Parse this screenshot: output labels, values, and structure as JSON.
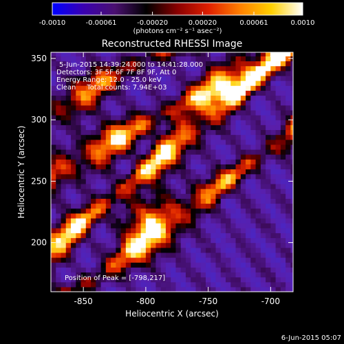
{
  "colorbar": {
    "tick_labels": [
      "-0.0010",
      "-0.00061",
      "-0.00020",
      "0.00020",
      "0.00061",
      "0.0010"
    ],
    "tick_values": [
      -0.001,
      -0.00061,
      -0.0002,
      0.0002,
      0.00061,
      0.001
    ],
    "range": [
      -0.001,
      0.001
    ],
    "unit_label": "(photons cm⁻² s⁻¹ asec⁻²)",
    "colors": [
      "#0000ff",
      "#3a00b0",
      "#4a1070",
      "#000000",
      "#8a0000",
      "#e02000",
      "#ff8000",
      "#ffd000",
      "#ffffff"
    ]
  },
  "chart_data": {
    "type": "heatmap",
    "title": "Reconstructed RHESSI Image",
    "xlabel": "Heliocentric X (arcsec)",
    "ylabel": "Heliocentric Y (arcsec)",
    "xlim": [
      -876,
      -682
    ],
    "ylim": [
      160,
      355
    ],
    "xticks": [
      -850,
      -800,
      -750,
      -700
    ],
    "yticks": [
      200,
      250,
      300,
      350
    ],
    "xtick_labels": [
      "-850",
      "-800",
      "-750",
      "-700"
    ],
    "ytick_labels": [
      "200",
      "250",
      "300",
      "350"
    ],
    "info_lines": [
      "5-Jun-2015 14:39:24.000 to 14:41:28.000",
      "Detectors: 3F 5F 6F 7F 8F 9F, Att 0",
      "Energy Range: 12.0 - 25.0 keV",
      "Clean     Total counts: 7.94E+03"
    ],
    "peak_label": "Position of Peak = [-798,217]",
    "peak": [
      -798,
      217
    ],
    "ridges": [
      {
        "y_at_x_min": 255,
        "slope": 0.55,
        "amplitude": 1.0
      },
      {
        "y_at_x_min": 305,
        "slope": 0.6,
        "amplitude": 0.8
      },
      {
        "y_at_x_min": 195,
        "slope": 0.85,
        "amplitude": 1.1
      },
      {
        "y_at_x_min": 145,
        "slope": 0.75,
        "amplitude": 0.9
      }
    ]
  },
  "footer_date": "6-Jun-2015 05:07"
}
